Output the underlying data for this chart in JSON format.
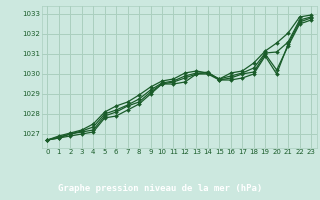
{
  "bg_color": "#cce8df",
  "plot_bg_color": "#cce8df",
  "label_bg_color": "#4a7c5a",
  "grid_color": "#aacfbf",
  "line_color": "#1a5c2a",
  "marker_color": "#1a5c2a",
  "title": "Graphe pression niveau de la mer (hPa)",
  "title_color": "#ffffff",
  "tick_color": "#1a5c2a",
  "xlim": [
    -0.5,
    23.5
  ],
  "ylim": [
    1026.3,
    1033.4
  ],
  "yticks": [
    1027,
    1028,
    1029,
    1030,
    1031,
    1032,
    1033
  ],
  "xticks": [
    0,
    1,
    2,
    3,
    4,
    5,
    6,
    7,
    8,
    9,
    10,
    11,
    12,
    13,
    14,
    15,
    16,
    17,
    18,
    19,
    20,
    21,
    22,
    23
  ],
  "series": [
    [
      1026.7,
      1026.8,
      1026.9,
      1027.0,
      1027.1,
      1027.8,
      1027.9,
      1028.2,
      1028.5,
      1029.0,
      1029.5,
      1029.5,
      1029.6,
      1030.0,
      1030.0,
      1029.7,
      1029.7,
      1029.8,
      1030.0,
      1030.9,
      1030.0,
      1031.5,
      1032.6,
      1032.8
    ],
    [
      1026.7,
      1026.8,
      1027.0,
      1027.1,
      1027.2,
      1027.9,
      1028.1,
      1028.4,
      1028.6,
      1029.1,
      1029.5,
      1029.6,
      1029.8,
      1030.0,
      1030.1,
      1029.7,
      1029.8,
      1030.0,
      1030.1,
      1031.0,
      1030.2,
      1031.4,
      1032.5,
      1032.7
    ],
    [
      1026.7,
      1026.85,
      1027.0,
      1027.15,
      1027.35,
      1028.0,
      1028.2,
      1028.45,
      1028.75,
      1029.2,
      1029.55,
      1029.65,
      1029.9,
      1030.05,
      1030.05,
      1029.75,
      1029.9,
      1030.05,
      1030.3,
      1031.05,
      1031.1,
      1031.6,
      1032.7,
      1032.85
    ],
    [
      1026.7,
      1026.9,
      1027.05,
      1027.2,
      1027.5,
      1028.1,
      1028.4,
      1028.6,
      1028.95,
      1029.35,
      1029.65,
      1029.75,
      1030.05,
      1030.15,
      1030.05,
      1029.75,
      1030.05,
      1030.15,
      1030.55,
      1031.15,
      1031.55,
      1032.05,
      1032.85,
      1032.95
    ]
  ]
}
